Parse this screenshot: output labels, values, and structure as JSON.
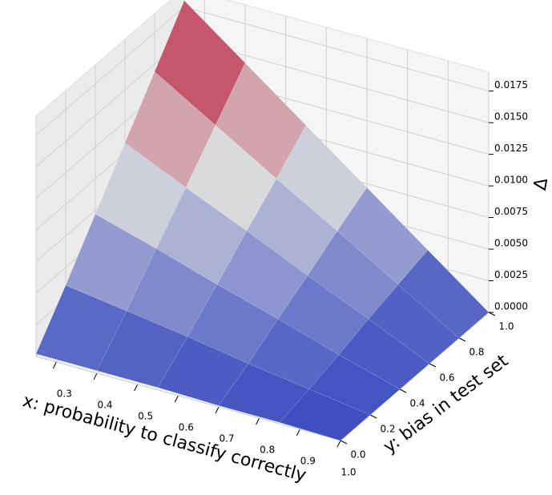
{
  "chart_data": {
    "type": "surface",
    "xlabel": "x: probability to classify correctly",
    "ylabel": "y: bias in test set",
    "zlabel": "Δ",
    "colormap": "coolwarm",
    "x": [
      0.25,
      0.4,
      0.55,
      0.7,
      0.85,
      1.0
    ],
    "y": [
      0,
      0.2,
      0.4,
      0.6,
      0.8,
      1.0
    ],
    "z": [
      [
        0.0002,
        0.0002,
        0.0002,
        0.0001,
        0.0001,
        0.0
      ],
      [
        0.0036,
        0.0029,
        0.0022,
        0.0014,
        0.0007,
        0.0
      ],
      [
        0.0072,
        0.0058,
        0.0043,
        0.0029,
        0.0014,
        0.0
      ],
      [
        0.0108,
        0.0086,
        0.0065,
        0.0043,
        0.0022,
        0.0
      ],
      [
        0.0144,
        0.0115,
        0.0086,
        0.0058,
        0.0029,
        0.0
      ],
      [
        0.018,
        0.0144,
        0.0108,
        0.0072,
        0.0036,
        0.0
      ]
    ],
    "xlim": [
      0.25,
      1.0
    ],
    "ylim": [
      0,
      1.0
    ],
    "zlim": [
      0,
      0.019
    ],
    "xticks": [
      0.3,
      0.4,
      0.5,
      0.6,
      0.7,
      0.8,
      0.9,
      {
        "value": 1.0,
        "label": "1.0"
      }
    ],
    "yticks": [
      {
        "value": 0,
        "label": "0.0"
      },
      0.2,
      0.4,
      0.6,
      0.8,
      {
        "value": 1.0,
        "label": "1.0"
      }
    ],
    "zticks": [
      {
        "value": 0,
        "label": "0.0000"
      },
      {
        "value": 0.0025,
        "label": "0.0025"
      },
      {
        "value": 0.005,
        "label": "0.0050"
      },
      {
        "value": 0.0075,
        "label": "0.0075"
      },
      {
        "value": 0.01,
        "label": "0.0100"
      },
      {
        "value": 0.0125,
        "label": "0.0125"
      },
      {
        "value": 0.015,
        "label": "0.0150"
      },
      {
        "value": 0.0175,
        "label": "0.0175"
      }
    ],
    "grid": true
  }
}
